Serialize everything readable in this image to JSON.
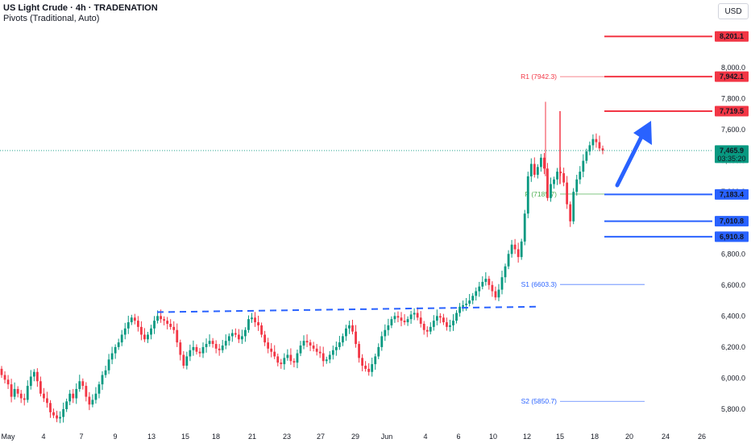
{
  "header": {
    "title": "US Light Crude · 4h · TRADENATION",
    "subtitle": "Pivots (Traditional, Auto)"
  },
  "currency_button": "USD",
  "colors": {
    "up": "#089981",
    "down": "#f23645",
    "red_level": "#f23645",
    "blue_level": "#2962ff",
    "pivot": "#4caf50",
    "accent_arrow": "#2962ff"
  },
  "chart_data": {
    "type": "candlestick",
    "title": "US Light Crude · 4h · TRADENATION",
    "y_ticks": [
      "8,000.0",
      "7,800.0",
      "7,600.0",
      "7,400.0",
      "7,200.0",
      "7,000.0",
      "6,800.0",
      "6,600.0",
      "6,400.0",
      "6,200.0",
      "6,000.0",
      "5,800.0"
    ],
    "y_tick_values": [
      8000,
      7800,
      7600,
      7400,
      7200,
      7000,
      6800,
      6600,
      6400,
      6200,
      6000,
      5800
    ],
    "x_ticks": [
      "May",
      "4",
      "7",
      "9",
      "13",
      "15",
      "18",
      "21",
      "23",
      "27",
      "29",
      "Jun",
      "4",
      "6",
      "10",
      "12",
      "15",
      "18",
      "20",
      "24",
      "26"
    ],
    "ylim": [
      5700,
      8300
    ],
    "price_labels": [
      {
        "text": "8,201.1",
        "value": 8201.1,
        "kind": "red"
      },
      {
        "text": "7,942.1",
        "value": 7942.1,
        "kind": "red"
      },
      {
        "text": "7,719.5",
        "value": 7719.5,
        "kind": "red"
      },
      {
        "text": "7,465.9",
        "value": 7465.9,
        "kind": "current",
        "sub": "03:35:20"
      },
      {
        "text": "7,183.4",
        "value": 7183.4,
        "kind": "blue"
      },
      {
        "text": "7,010.8",
        "value": 7010.8,
        "kind": "blue"
      },
      {
        "text": "6,910.8",
        "value": 6910.8,
        "kind": "blue"
      }
    ],
    "pivots": [
      {
        "label": "R1 (7942.3)",
        "value": 7942.3
      },
      {
        "label": "P (7185.7)",
        "value": 7185.7
      },
      {
        "label": "S1 (6603.3)",
        "value": 6603.3
      },
      {
        "label": "S2 (5850.7)",
        "value": 5850.7
      }
    ],
    "current_price": 7465.9,
    "trendline": {
      "from": {
        "date": "May 13",
        "value": 6425
      },
      "to": {
        "date": "Jun 12",
        "value": 6460
      }
    },
    "candles_closes": [
      6020,
      5990,
      5960,
      5880,
      5930,
      5900,
      5870,
      5860,
      5950,
      6010,
      6040,
      5980,
      5900,
      5870,
      5840,
      5780,
      5760,
      5740,
      5750,
      5800,
      5850,
      5900,
      5870,
      5930,
      5980,
      5950,
      5880,
      5830,
      5860,
      5900,
      5960,
      6020,
      6050,
      6120,
      6160,
      6200,
      6230,
      6280,
      6320,
      6360,
      6390,
      6370,
      6330,
      6280,
      6250,
      6280,
      6320,
      6370,
      6400,
      6380,
      6370,
      6350,
      6330,
      6310,
      6230,
      6150,
      6080,
      6140,
      6180,
      6200,
      6170,
      6160,
      6200,
      6220,
      6240,
      6220,
      6190,
      6180,
      6210,
      6240,
      6270,
      6290,
      6280,
      6250,
      6270,
      6310,
      6380,
      6390,
      6360,
      6340,
      6280,
      6230,
      6190,
      6170,
      6140,
      6100,
      6090,
      6130,
      6150,
      6110,
      6100,
      6160,
      6210,
      6240,
      6230,
      6210,
      6190,
      6170,
      6160,
      6110,
      6120,
      6150,
      6180,
      6200,
      6230,
      6270,
      6320,
      6340,
      6300,
      6220,
      6130,
      6080,
      6060,
      6040,
      6090,
      6140,
      6200,
      6270,
      6310,
      6340,
      6380,
      6400,
      6390,
      6370,
      6360,
      6380,
      6410,
      6420,
      6390,
      6350,
      6310,
      6300,
      6330,
      6370,
      6400,
      6390,
      6360,
      6330,
      6340,
      6370,
      6420,
      6460,
      6470,
      6480,
      6500,
      6530,
      6560,
      6590,
      6620,
      6640,
      6600,
      6560,
      6520,
      6570,
      6650,
      6720,
      6800,
      6860,
      6830,
      6780,
      6880,
      7060,
      7300,
      7380,
      7310,
      7360,
      7420,
      7350,
      7160,
      7250,
      7280,
      7330,
      7320,
      7260,
      7120,
      7010,
      7200,
      7280,
      7330,
      7400,
      7460,
      7500,
      7540,
      7520,
      7480,
      7465.9
    ]
  }
}
